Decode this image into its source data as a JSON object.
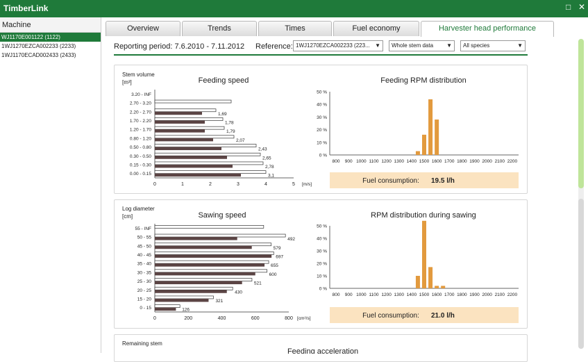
{
  "app": {
    "title": "TimberLink"
  },
  "sidebar": {
    "header": "Machine",
    "items": [
      "WJ1170E001122 (1122)",
      "1WJ1270EZCA002233 (2233)",
      "1WJ1170ECAD002433 (2433)"
    ]
  },
  "tabs": [
    {
      "label": "Overview"
    },
    {
      "label": "Trends"
    },
    {
      "label": "Times"
    },
    {
      "label": "Fuel economy"
    },
    {
      "label": "Harvester head performance"
    }
  ],
  "toolbar": {
    "period_label": "Reporting period: 7.6.2010 - 7.11.2012",
    "reference_label": "Reference:",
    "reference_value": "1WJ1270EZCA002233 (223...",
    "stem_value": "Whole stem data",
    "species_value": "All species"
  },
  "colors": {
    "brand": "#1f7a3a",
    "bar_dark": "#5b4444",
    "bar_orange": "#e29a3e",
    "fuel_bg": "#fbe3c0"
  },
  "panel1": {
    "ylabel1": "Stem volume",
    "ylabel2": "[m³]",
    "fuel_label": "Fuel consumption:",
    "fuel_value": "19.5 l/h"
  },
  "panel2": {
    "ylabel1": "Log diameter",
    "ylabel2": "[cm]",
    "fuel_label": "Fuel consumption:",
    "fuel_value": "21.0 l/h"
  },
  "panel3": {
    "ylabel1": "Remaining stem",
    "title": "Feeding acceleration"
  },
  "chart_data": [
    {
      "type": "bar",
      "orientation": "horizontal",
      "title": "Feeding speed",
      "ylabel": "Stem volume [m³]",
      "xlabel": "[m/s]",
      "xlim": [
        0,
        5
      ],
      "xticks": [
        0,
        1,
        2,
        3,
        4,
        5
      ],
      "categories": [
        "3.20 - INF",
        "2.70 - 3.20",
        "2.20 - 2.70",
        "1.70 - 2.20",
        "1.20 - 1.70",
        "0.80 - 1.20",
        "0.50 - 0.80",
        "0.30 - 0.50",
        "0.15 - 0.30",
        "0.00 - 0.15"
      ],
      "series": [
        {
          "values": [
            null,
            null,
            1.7,
            1.8,
            1.8,
            2.1,
            2.4,
            2.6,
            2.8,
            3.1
          ]
        },
        {
          "values": [
            null,
            2.75,
            2.2,
            2.45,
            2.5,
            2.85,
            3.65,
            3.8,
            3.9,
            4.0
          ]
        }
      ],
      "data_labels": [
        null,
        null,
        "1,69",
        "1,78",
        "1,79",
        "2,07",
        "2,43",
        "2,65",
        "2,78",
        "3,1"
      ]
    },
    {
      "type": "bar",
      "title": "Feeding RPM distribution",
      "categories": [
        "800",
        "900",
        "1000",
        "1100",
        "1200",
        "1300",
        "1400",
        "1500",
        "1600",
        "1700",
        "1800",
        "1900",
        "2000",
        "2100",
        "2200"
      ],
      "yticks": [
        "0 %",
        "10 %",
        "20 %",
        "30 %",
        "40 %",
        "50 %"
      ],
      "ylim": [
        0,
        50
      ],
      "x": [
        1450,
        1500,
        1550,
        1600
      ],
      "values": [
        3,
        16,
        44,
        28
      ]
    },
    {
      "type": "bar",
      "orientation": "horizontal",
      "title": "Sawing speed",
      "ylabel": "Log diameter [cm]",
      "xlabel": "[cm²/s]",
      "xlim": [
        0,
        800
      ],
      "xticks": [
        0,
        200,
        400,
        600,
        800
      ],
      "categories": [
        "55 - INF",
        "50 - 55",
        "45 - 50",
        "40 - 45",
        "35 - 40",
        "30 - 35",
        "25 - 30",
        "20 - 25",
        "15 - 20",
        "0 - 15"
      ],
      "series": [
        {
          "values": [
            null,
            492,
            579,
            697,
            655,
            600,
            521,
            430,
            321,
            126
          ]
        },
        {
          "values": [
            650,
            780,
            695,
            710,
            680,
            670,
            580,
            465,
            350,
            150
          ]
        }
      ],
      "data_labels": [
        null,
        "492",
        "579",
        "697",
        "655",
        "600",
        "521",
        "430",
        "321",
        "126"
      ]
    },
    {
      "type": "bar",
      "title": "RPM distribution during sawing",
      "categories": [
        "800",
        "900",
        "1000",
        "1100",
        "1200",
        "1300",
        "1400",
        "1500",
        "1600",
        "1700",
        "1800",
        "1900",
        "2000",
        "2100",
        "2200"
      ],
      "yticks": [
        "0 %",
        "10 %",
        "20 %",
        "30 %",
        "40 %",
        "50 %"
      ],
      "ylim": [
        0,
        50
      ],
      "x": [
        1450,
        1500,
        1550,
        1600,
        1650
      ],
      "values": [
        10,
        54,
        17,
        2,
        2
      ]
    }
  ]
}
